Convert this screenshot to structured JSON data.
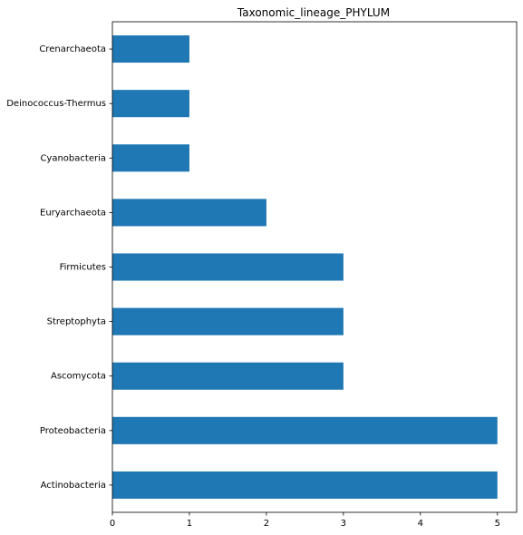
{
  "chart_data": {
    "type": "bar",
    "orientation": "horizontal",
    "title": "Taxonomic_lineage_PHYLUM",
    "xlabel": "",
    "ylabel": "",
    "categories": [
      "Crenarchaeota",
      "Deinococcus-Thermus",
      "Cyanobacteria",
      "Euryarchaeota",
      "Firmicutes",
      "Streptophyta",
      "Ascomycota",
      "Proteobacteria",
      "Actinobacteria"
    ],
    "values": [
      1,
      1,
      1,
      2,
      3,
      3,
      3,
      5,
      5
    ],
    "xlim": [
      0,
      5.25
    ],
    "xticks": [
      0,
      1,
      2,
      3,
      4,
      5
    ],
    "grid": false,
    "legend": "none",
    "bar_color": "#1f77b4"
  }
}
